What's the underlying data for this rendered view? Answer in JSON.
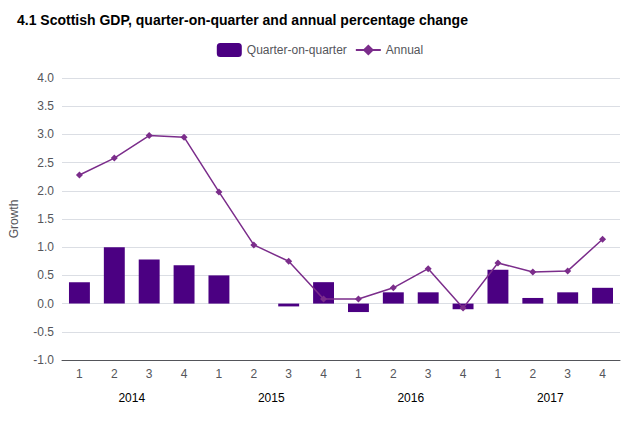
{
  "chart_data": {
    "type": "bar",
    "title": "4.1 Scottish GDP, quarter-on-quarter and annual percentage change",
    "y_label": "Growth",
    "categories": [
      1,
      2,
      3,
      4,
      1,
      2,
      3,
      4,
      1,
      2,
      3,
      4,
      1,
      2,
      3,
      4
    ],
    "annotations": [
      "2014",
      "2015",
      "2016",
      "2017"
    ],
    "series": [
      {
        "name": "Quarter-on-quarter",
        "type": "bar",
        "color": "#4b0082",
        "values": [
          0.38,
          1.0,
          0.78,
          0.68,
          0.5,
          null,
          -0.05,
          0.38,
          -0.15,
          0.2,
          0.2,
          -0.1,
          0.6,
          0.1,
          0.2,
          0.28
        ]
      },
      {
        "name": "Annual",
        "type": "line",
        "color": "#7b2d8b",
        "marker": "diamond",
        "values": [
          2.28,
          2.58,
          2.98,
          2.95,
          1.98,
          1.04,
          0.75,
          0.08,
          0.08,
          0.28,
          0.62,
          -0.08,
          0.72,
          0.56,
          0.58,
          1.14
        ]
      }
    ],
    "ylim": [
      -1.0,
      4.0
    ],
    "yticks": [
      {
        "value": -1.0,
        "label": "-1.0"
      },
      -0.5,
      {
        "value": 0.0,
        "label": "0.0"
      },
      0.5,
      {
        "value": 1.0,
        "label": "1.0"
      },
      1.5,
      {
        "value": 2.0,
        "label": "2.0"
      },
      2.5,
      {
        "value": 3.0,
        "label": "3.0"
      },
      3.5,
      {
        "value": 4.0,
        "label": "4.0"
      }
    ],
    "grid": true,
    "legend": "top"
  }
}
